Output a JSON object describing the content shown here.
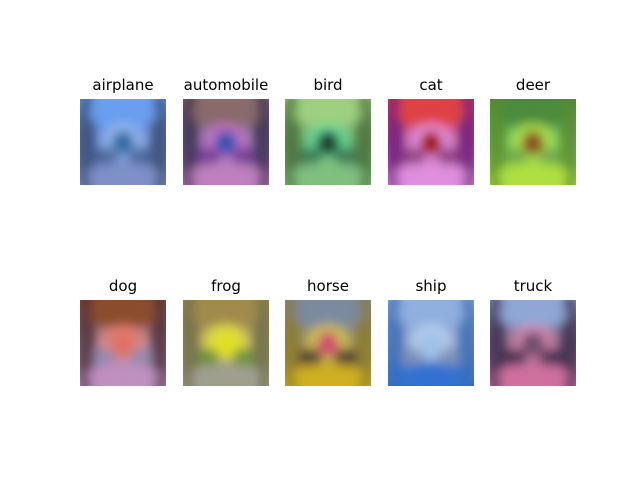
{
  "figure": {
    "panels": [
      {
        "label": "airplane",
        "palette": {
          "base": "#6a8ad8",
          "top": "#6aa0f0",
          "center": "#2a6aa0",
          "blob": "#3a5a88",
          "bottom": "#8090c8",
          "edge": "#3a4a6a",
          "accent": "#a0c0f0"
        }
      },
      {
        "label": "automobile",
        "palette": {
          "base": "#8a7aa8",
          "top": "#8a6a6a",
          "center": "#3050b0",
          "blob": "#6a2a8a",
          "bottom": "#c080c0",
          "edge": "#3a2a4a",
          "accent": "#d070d0"
        }
      },
      {
        "label": "bird",
        "palette": {
          "base": "#70b070",
          "top": "#a0d080",
          "center": "#1a3a2a",
          "blob": "#2a6a4a",
          "bottom": "#80c080",
          "edge": "#4a6a3a",
          "accent": "#60e0a0"
        }
      },
      {
        "label": "cat",
        "palette": {
          "base": "#c060a0",
          "top": "#e04040",
          "center": "#a01010",
          "blob": "#7a3070",
          "bottom": "#e090e0",
          "edge": "#6a1a7a",
          "accent": "#f0a0f0"
        }
      },
      {
        "label": "deer",
        "palette": {
          "base": "#70c060",
          "top": "#4a8a3a",
          "center": "#8a4a1a",
          "blob": "#6aa04a",
          "bottom": "#b0e040",
          "edge": "#5a8a2a",
          "accent": "#c0f050"
        }
      },
      {
        "label": "dog",
        "palette": {
          "base": "#b08aa0",
          "top": "#8a4a2a",
          "center": "#e07060",
          "blob": "#8a8ab0",
          "bottom": "#c090c0",
          "edge": "#4a2a3a",
          "accent": "#f08070"
        }
      },
      {
        "label": "frog",
        "palette": {
          "base": "#b0a060",
          "top": "#a08a4a",
          "center": "#e0e020",
          "blob": "#5a8a2a",
          "bottom": "#a0a090",
          "edge": "#6a6a4a",
          "accent": "#f0f040"
        }
      },
      {
        "label": "horse",
        "palette": {
          "base": "#9a8a6a",
          "top": "#7a8aa0",
          "center": "#d04a70",
          "blob": "#2a1a2a",
          "bottom": "#d0b020",
          "edge": "#8a7a2a",
          "accent": "#e0d040"
        }
      },
      {
        "label": "ship",
        "palette": {
          "base": "#8aa0d0",
          "top": "#90b0e0",
          "center": "#a0c0e8",
          "blob": "#8090b0",
          "bottom": "#3070d0",
          "edge": "#3a6ab0",
          "accent": "#c0d8f0"
        }
      },
      {
        "label": "truck",
        "palette": {
          "base": "#8a6a8a",
          "top": "#90a8d8",
          "center": "#6a4a6a",
          "blob": "#2a1a3a",
          "bottom": "#d070a0",
          "edge": "#3a2a4a",
          "accent": "#e08ab0"
        }
      }
    ]
  }
}
